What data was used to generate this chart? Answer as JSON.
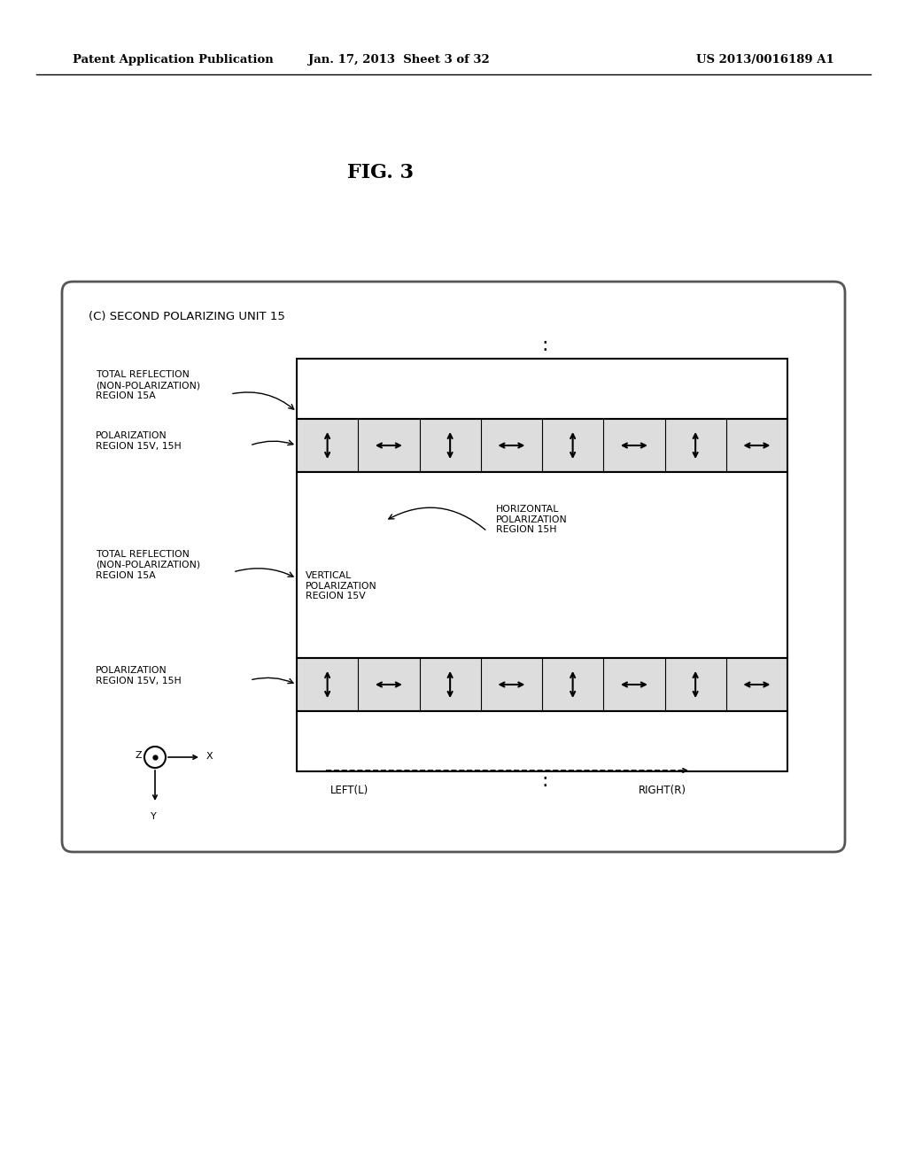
{
  "bg_color": "#ffffff",
  "header_left": "Patent Application Publication",
  "header_mid": "Jan. 17, 2013  Sheet 3 of 32",
  "header_right": "US 2013/0016189 A1",
  "fig_label": "FIG. 3",
  "diagram_title": "(C) SECOND POLARIZING UNIT 15",
  "label_total_reflection_top": "TOTAL REFLECTION\n(NON-POLARIZATION)\nREGION 15A",
  "label_polarization_top": "POLARIZATION\nREGION 15V, 15H",
  "label_total_reflection_mid": "TOTAL REFLECTION\n(NON-POLARIZATION)\nREGION 15A",
  "label_horizontal": "HORIZONTAL\nPOLARIZATION\nREGION 15H",
  "label_vertical": "VERTICAL\nPOLARIZATION\nREGION 15V",
  "label_polarization_bot": "POLARIZATION\nREGION 15V, 15H",
  "left_label": "LEFT(L)",
  "right_label": "RIGHT(R)"
}
